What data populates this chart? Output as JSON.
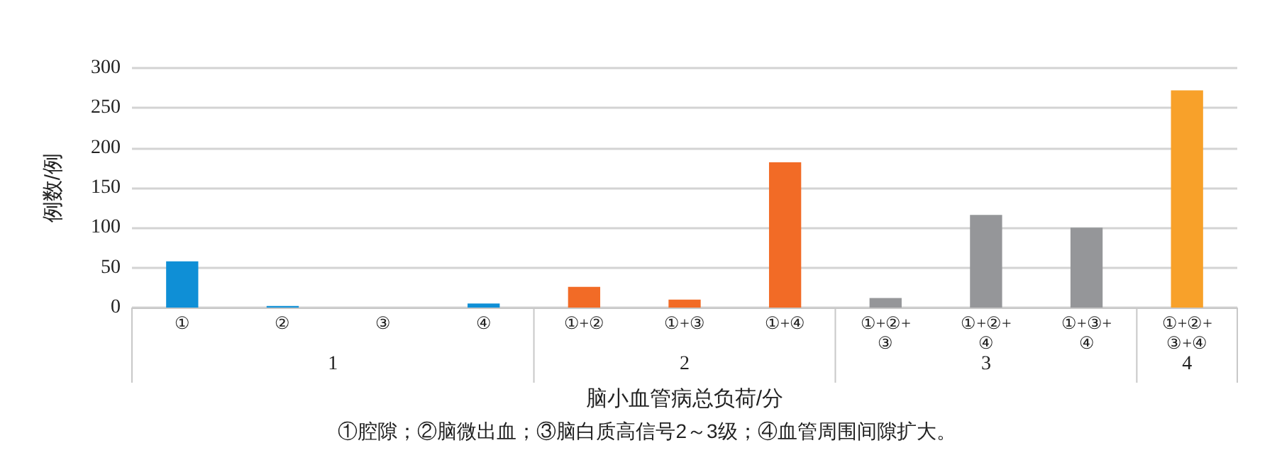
{
  "chart_data": {
    "type": "bar",
    "xlabel": "脑小血管病总负荷/分",
    "ylabel": "例数/例",
    "categories": [
      "①",
      "②",
      "③",
      "④",
      "①+②",
      "①+③",
      "①+④",
      "①+②+③",
      "①+②+④",
      "①+③+④",
      "①+②+③+④"
    ],
    "values": [
      58,
      2,
      0,
      5,
      26,
      10,
      182,
      12,
      116,
      100,
      272
    ],
    "colors": [
      "#0f8fd6",
      "#0f8fd6",
      "#0f8fd6",
      "#0f8fd6",
      "#f26b26",
      "#f26b26",
      "#f26b26",
      "#959699",
      "#959699",
      "#959699",
      "#f8a12a"
    ],
    "ylim": [
      0,
      300
    ],
    "yticks": [
      0,
      50,
      100,
      150,
      200,
      250,
      300
    ],
    "grid": "y",
    "annotations": [
      "1",
      "2",
      "3",
      "4",
      "①腔隙；②脑微出血；③脑白质高信号2～3级；④血管周围间隙扩大。"
    ]
  }
}
